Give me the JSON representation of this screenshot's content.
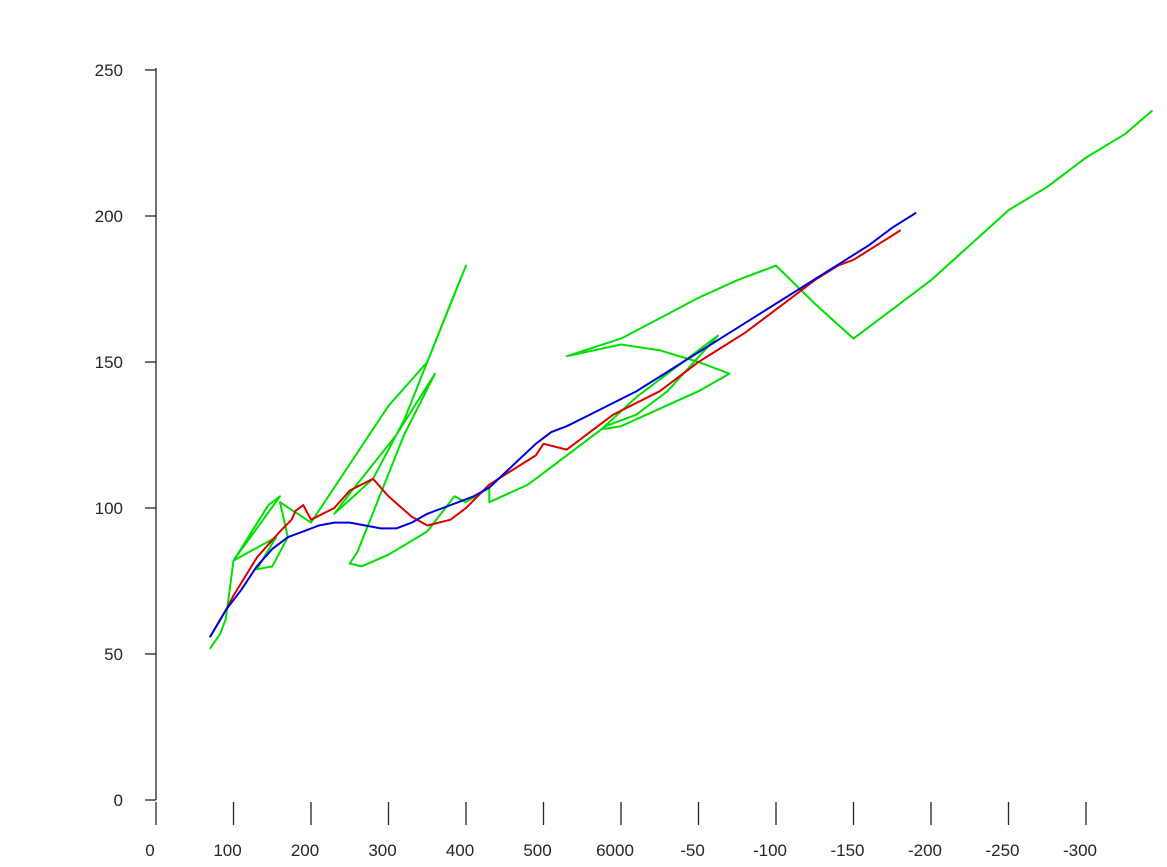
{
  "chart_data": {
    "type": "line",
    "title": "",
    "xlabel": "",
    "ylabel": "",
    "grid": false,
    "legend": "none",
    "x_tick_labels": [
      "0",
      "100",
      "200",
      "300",
      "400",
      "500",
      "6000",
      "-50",
      "-100",
      "-150",
      "-200",
      "-250",
      "-300"
    ],
    "y_ticks": [
      0,
      50,
      100,
      150,
      200,
      250
    ],
    "ylim": [
      0,
      250
    ],
    "x_ticks_index": [
      0,
      1,
      2,
      3,
      4,
      5,
      6,
      7,
      8,
      9,
      10,
      11,
      12
    ],
    "xlim_index": [
      0,
      12
    ],
    "series": [
      {
        "color": "#00e000",
        "x": [
          0.7,
          0.83,
          0.9,
          1.0,
          1.45,
          1.6,
          1.0,
          1.55,
          1.3,
          1.5,
          1.7,
          1.6,
          2.0,
          2.5,
          3.0,
          3.5,
          4.0,
          3.8,
          3.5,
          3.2,
          2.8,
          2.3,
          2.5,
          2.8,
          3.1,
          3.6,
          3.2,
          2.6,
          2.5,
          2.65,
          3.0,
          3.5,
          3.85,
          4.0,
          4.3,
          4.3,
          4.8,
          5.3,
          5.8,
          6.2,
          6.6,
          7.25,
          6.7,
          6.2,
          5.75,
          6.0,
          6.5,
          7.0,
          7.4,
          7.0,
          6.5,
          6.0,
          5.3,
          6.0,
          6.5,
          7.0,
          7.5,
          8.0,
          8.5,
          9.0,
          9.5,
          10.0,
          10.5,
          11.0,
          11.5,
          12.0,
          12.5,
          12.85
        ],
        "y": [
          52,
          57,
          62,
          82,
          101,
          104,
          82,
          90,
          79,
          80,
          90,
          102,
          95,
          115,
          135,
          150,
          183,
          170,
          150,
          130,
          110,
          98,
          105,
          115,
          125,
          146,
          125,
          85,
          81,
          80,
          84,
          92,
          104,
          102,
          107,
          102,
          108,
          118,
          128,
          132,
          140,
          159,
          148,
          138,
          127,
          128,
          134,
          140,
          146,
          150,
          154,
          156,
          152,
          158,
          165,
          172,
          178,
          183,
          170,
          158,
          168,
          178,
          190,
          202,
          210,
          220,
          228,
          236
        ]
      },
      {
        "color": "#dd0000",
        "x": [
          0.7,
          0.9,
          1.0,
          1.3,
          1.6,
          1.75,
          1.8,
          1.9,
          2.0,
          2.3,
          2.5,
          2.8,
          3.0,
          3.3,
          3.5,
          3.8,
          4.0,
          4.3,
          4.6,
          4.9,
          5.0,
          5.3,
          5.6,
          5.9,
          6.2,
          6.5,
          6.8,
          7.0,
          7.3,
          7.6,
          7.9,
          8.2,
          8.5,
          8.8,
          9.0,
          9.3,
          9.6
        ],
        "y": [
          56,
          65,
          70,
          83,
          92,
          96,
          99,
          101,
          96,
          100,
          106,
          110,
          104,
          97,
          94,
          96,
          100,
          108,
          113,
          118,
          122,
          120,
          126,
          132,
          136,
          140,
          146,
          150,
          155,
          160,
          166,
          172,
          178,
          183,
          185,
          190,
          195
        ]
      },
      {
        "color": "#0000dd",
        "x": [
          0.7,
          0.9,
          1.1,
          1.3,
          1.5,
          1.7,
          1.9,
          2.1,
          2.3,
          2.5,
          2.7,
          2.9,
          3.1,
          3.3,
          3.5,
          3.7,
          3.9,
          4.1,
          4.3,
          4.5,
          4.7,
          4.9,
          5.1,
          5.3,
          5.6,
          5.9,
          6.2,
          6.5,
          6.8,
          7.1,
          7.4,
          7.7,
          8.0,
          8.3,
          8.6,
          8.9,
          9.2,
          9.5,
          9.8
        ],
        "y": [
          56,
          65,
          72,
          80,
          86,
          90,
          92,
          94,
          95,
          95,
          94,
          93,
          93,
          95,
          98,
          100,
          102,
          104,
          107,
          112,
          117,
          122,
          126,
          128,
          132,
          136,
          140,
          145,
          150,
          155,
          160,
          165,
          170,
          175,
          180,
          185,
          190,
          196,
          201
        ]
      }
    ]
  }
}
